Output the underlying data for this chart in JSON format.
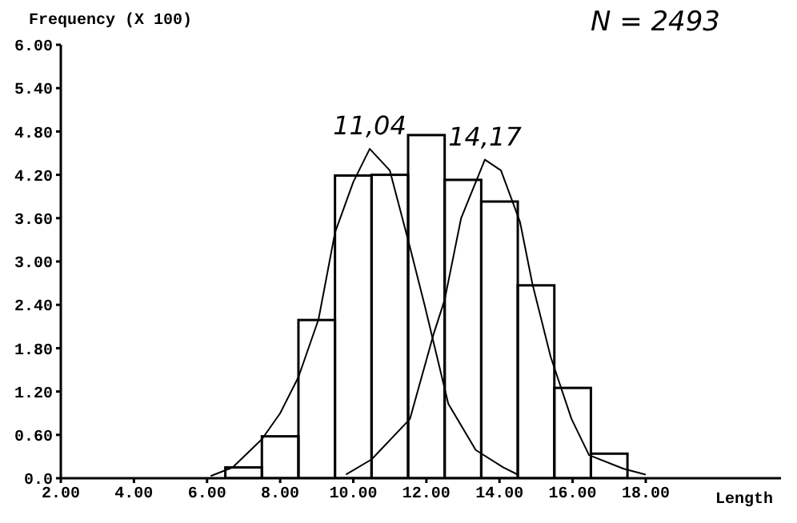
{
  "chart_data": {
    "type": "histogram",
    "ylabel": "Frequency  (X  100)",
    "xlabel": "Length",
    "bins": [
      6.5,
      7.5,
      8.5,
      9.5,
      10.5,
      11.5,
      12.5,
      13.5,
      14.5,
      15.5,
      16.5,
      17.5
    ],
    "values": [
      0.15,
      0.58,
      2.19,
      4.19,
      4.2,
      4.75,
      4.13,
      3.83,
      2.67,
      1.25,
      0.34
    ],
    "color": "#000000",
    "series": [
      {
        "type": "line",
        "color": "#000000",
        "x": [
          6.1,
          6.7,
          7.5,
          8.0,
          8.5,
          9.05,
          9.5,
          10.0,
          10.45,
          11.0,
          11.55,
          11.95,
          12.6,
          13.35,
          14.1,
          14.5
        ],
        "values": [
          0.03,
          0.15,
          0.54,
          0.9,
          1.4,
          2.2,
          3.4,
          4.1,
          4.56,
          4.26,
          3.2,
          2.4,
          1.03,
          0.39,
          0.15,
          0.05
        ]
      },
      {
        "type": "line",
        "color": "#000000",
        "x": [
          9.8,
          10.5,
          11.55,
          12.2,
          12.5,
          12.95,
          13.6,
          14.04,
          14.56,
          14.9,
          15.4,
          15.97,
          16.45,
          17.4,
          18.0
        ],
        "values": [
          0.05,
          0.26,
          0.82,
          2.0,
          2.47,
          3.6,
          4.41,
          4.26,
          3.55,
          2.69,
          1.68,
          0.82,
          0.32,
          0.13,
          0.05
        ]
      }
    ],
    "xlim": [
      2,
      21.7
    ],
    "xticks": [
      {
        "value": 2,
        "label": "2.00"
      },
      {
        "value": 4,
        "label": "4.00"
      },
      {
        "value": 6,
        "label": "6.00"
      },
      {
        "value": 8,
        "label": "8.00"
      },
      {
        "value": 10,
        "label": "10.00"
      },
      {
        "value": 12,
        "label": "12.00"
      },
      {
        "value": 14,
        "label": "14.00"
      },
      {
        "value": 16,
        "label": "16.00"
      },
      {
        "value": 18,
        "label": "18.00"
      }
    ],
    "ylim": [
      0,
      6
    ],
    "yticks": [
      {
        "value": 0,
        "label": "0.0"
      },
      {
        "value": 0.6,
        "label": "0.60"
      },
      {
        "value": 1.2,
        "label": "1.20"
      },
      {
        "value": 1.8,
        "label": "1.80"
      },
      {
        "value": 2.4,
        "label": "2.40"
      },
      {
        "value": 3,
        "label": "3.00"
      },
      {
        "value": 3.6,
        "label": "3.60"
      },
      {
        "value": 4.2,
        "label": "4.20"
      },
      {
        "value": 4.8,
        "label": "4.80"
      },
      {
        "value": 5.4,
        "label": "5.40"
      },
      {
        "value": 6,
        "label": "6.00"
      }
    ],
    "annotations": [
      {
        "text": "11,04",
        "x": 10.45,
        "y": 4.65
      },
      {
        "text": "14,17",
        "x": 13.6,
        "y": 4.5
      },
      "N = 2493"
    ],
    "grid": false,
    "marker": "none",
    "line_style": "solid"
  }
}
